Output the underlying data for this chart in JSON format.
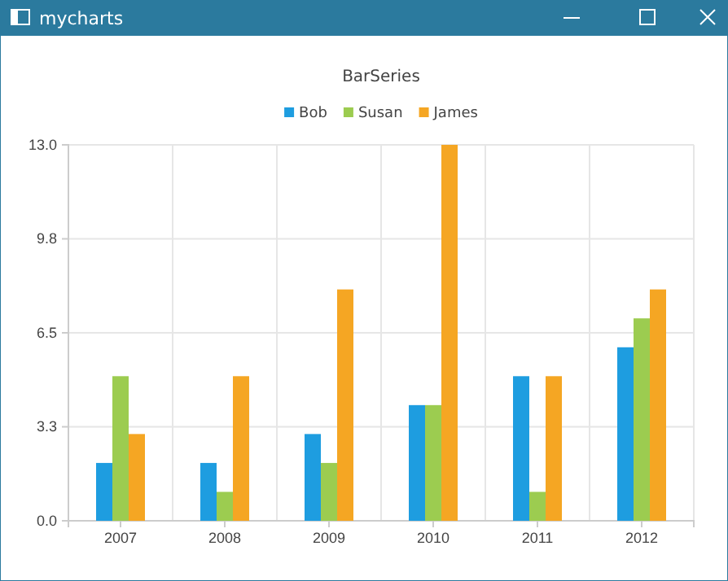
{
  "chart_data": {
    "type": "bar",
    "title": "BarSeries",
    "annotations": [
      "mycharts"
    ],
    "categories": [
      "2007",
      "2008",
      "2009",
      "2010",
      "2011",
      "2012"
    ],
    "series": [
      {
        "name": "Bob",
        "color": "#1e9de0",
        "values": [
          2,
          2,
          3,
          4,
          5,
          6
        ]
      },
      {
        "name": "Susan",
        "color": "#9ccc50",
        "values": [
          5,
          1,
          2,
          4,
          1,
          7
        ]
      },
      {
        "name": "James",
        "color": "#f5a623",
        "values": [
          3,
          5,
          8,
          13,
          5,
          8
        ]
      }
    ],
    "ylim": [
      0,
      13
    ],
    "yticks": [
      {
        "value": 0,
        "label": "0.0"
      },
      {
        "value": 3.25,
        "label": "3.3"
      },
      {
        "value": 6.5,
        "label": "6.5"
      },
      {
        "value": 9.75,
        "label": "9.8"
      },
      {
        "value": 13,
        "label": "13.0"
      }
    ],
    "grid": true,
    "legend": "top"
  }
}
